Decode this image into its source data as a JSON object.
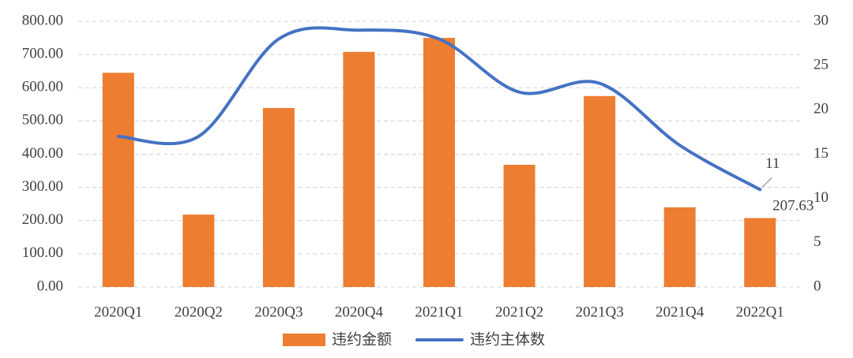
{
  "chart_data": {
    "type": "bar-line",
    "categories": [
      "2020Q1",
      "2020Q2",
      "2020Q3",
      "2020Q4",
      "2021Q1",
      "2021Q2",
      "2021Q3",
      "2021Q4",
      "2022Q1"
    ],
    "series": [
      {
        "name": "违约金额",
        "type": "bar",
        "color": "#ed7d31",
        "values": [
          645,
          218,
          539,
          708,
          750,
          368,
          575,
          240,
          207.63
        ]
      },
      {
        "name": "违约主体数",
        "type": "line",
        "axis": "y2",
        "color": "#4472c4",
        "values": [
          17,
          17,
          28,
          29,
          28,
          22,
          23,
          16,
          11
        ]
      }
    ],
    "ylim": [
      0,
      800
    ],
    "yticks": [
      {
        "value": 0,
        "label": "0.00"
      },
      {
        "value": 100,
        "label": "100.00"
      },
      {
        "value": 200,
        "label": "200.00"
      },
      {
        "value": 300,
        "label": "300.00"
      },
      {
        "value": 400,
        "label": "400.00"
      },
      {
        "value": 500,
        "label": "500.00"
      },
      {
        "value": 600,
        "label": "600.00"
      },
      {
        "value": 700,
        "label": "700.00"
      },
      {
        "value": 800,
        "label": "800.00"
      }
    ],
    "y2lim": [
      0,
      30
    ],
    "y2ticks": [
      0,
      5,
      10,
      15,
      20,
      25,
      30
    ],
    "grid": true,
    "legend": "bottom"
  }
}
